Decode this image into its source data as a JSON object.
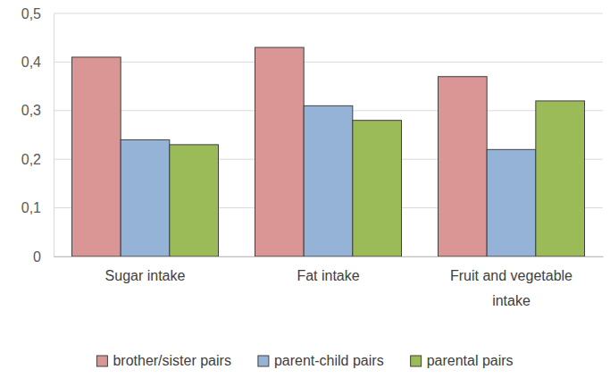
{
  "chart_data": {
    "type": "bar",
    "categories": [
      "Sugar intake",
      "Fat intake",
      "Fruit and vegetable intake"
    ],
    "series": [
      {
        "name": "brother/sister pairs",
        "color": "#d99694",
        "values": [
          0.41,
          0.43,
          0.37
        ]
      },
      {
        "name": "parent-child pairs",
        "color": "#95b3d7",
        "values": [
          0.24,
          0.31,
          0.22
        ]
      },
      {
        "name": "parental pairs",
        "color": "#9bbb59",
        "values": [
          0.23,
          0.28,
          0.32
        ]
      }
    ],
    "ylim": [
      0,
      0.5
    ],
    "yticks": [
      0,
      {
        "value": 0.1,
        "label": "0,1"
      },
      {
        "value": 0.2,
        "label": "0,2"
      },
      {
        "value": 0.3,
        "label": "0,3"
      },
      {
        "value": 0.4,
        "label": "0,4"
      },
      {
        "value": 0.5,
        "label": "0,5"
      }
    ],
    "grid": true,
    "legend": "bottom"
  }
}
